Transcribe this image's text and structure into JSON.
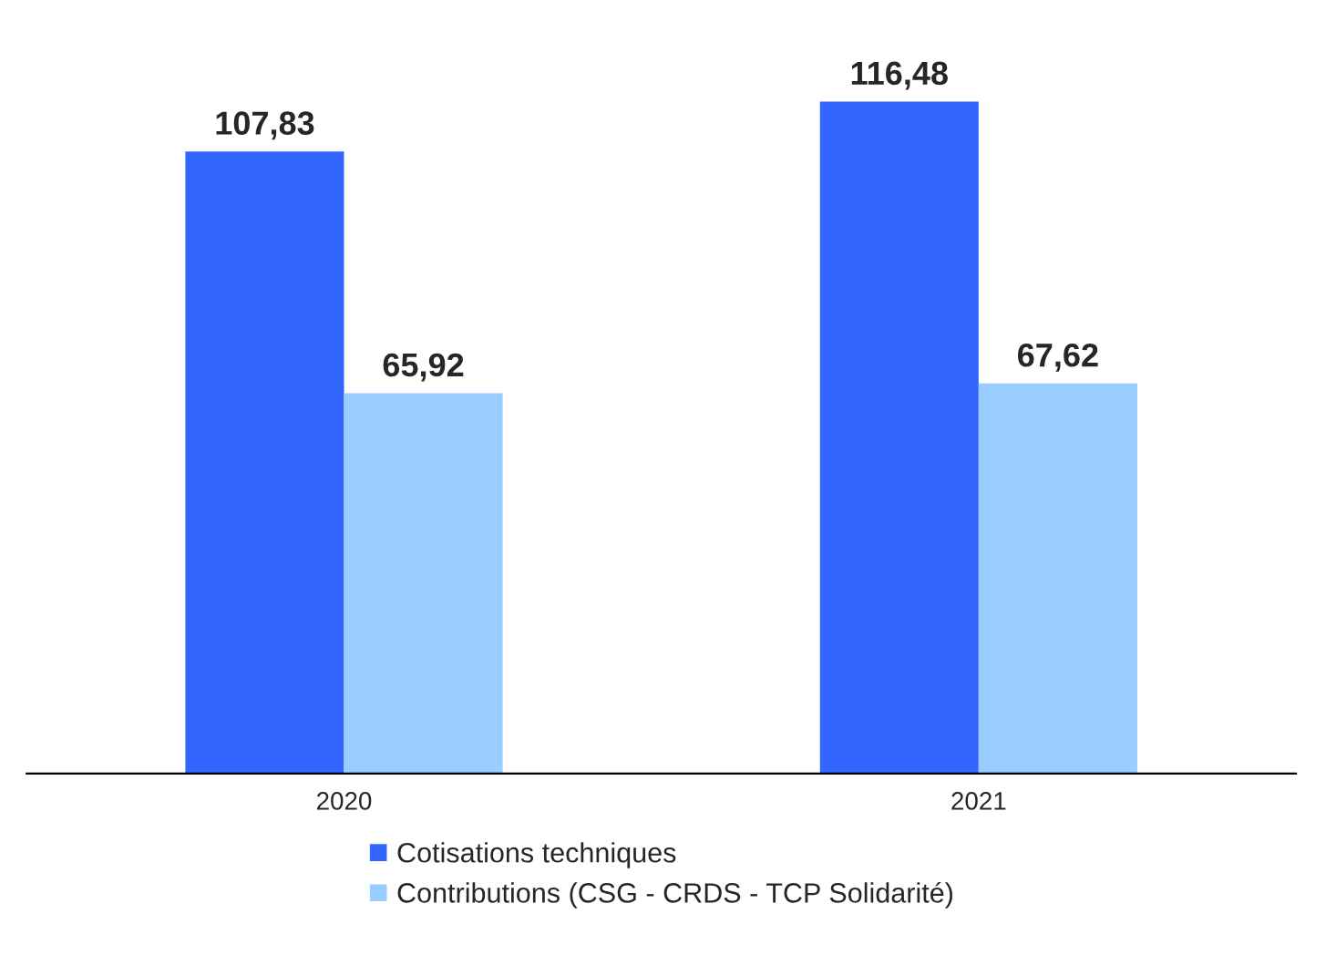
{
  "chart_data": {
    "type": "bar",
    "categories": [
      "2020",
      "2021"
    ],
    "series": [
      {
        "name": "Cotisations techniques",
        "color": "#3366ff",
        "values": [
          107.83,
          116.48
        ],
        "value_labels": [
          "107,83",
          "116,48"
        ]
      },
      {
        "name": "Contributions (CSG - CRDS - TCP Solidarité)",
        "color": "#99ccff",
        "values": [
          65.92,
          67.62
        ],
        "value_labels": [
          "65,92",
          "67,62"
        ]
      }
    ],
    "legend": "bottom",
    "grid": false
  }
}
